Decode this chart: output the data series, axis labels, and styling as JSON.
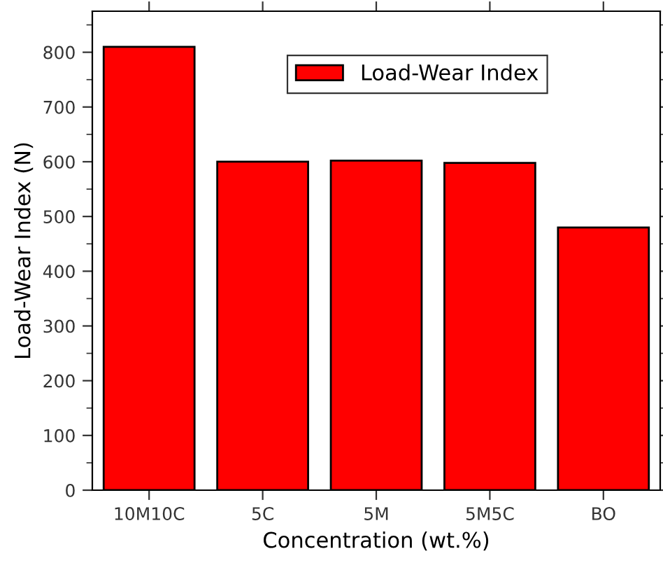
{
  "chart_data": {
    "type": "bar",
    "categories": [
      "10M10C",
      "5C",
      "5M",
      "5M5C",
      "BO"
    ],
    "series": [
      {
        "name": "Load-Wear Index",
        "color": "#ff0000",
        "values": [
          810,
          600,
          602,
          598,
          480
        ]
      }
    ],
    "xlabel": "Concentration (wt.%)",
    "ylabel": "Load-Wear Index (N)",
    "ylim": [
      0,
      875
    ],
    "yticks": [
      0,
      100,
      200,
      300,
      400,
      500,
      600,
      700,
      800
    ],
    "grid": false,
    "legend": "top right"
  }
}
